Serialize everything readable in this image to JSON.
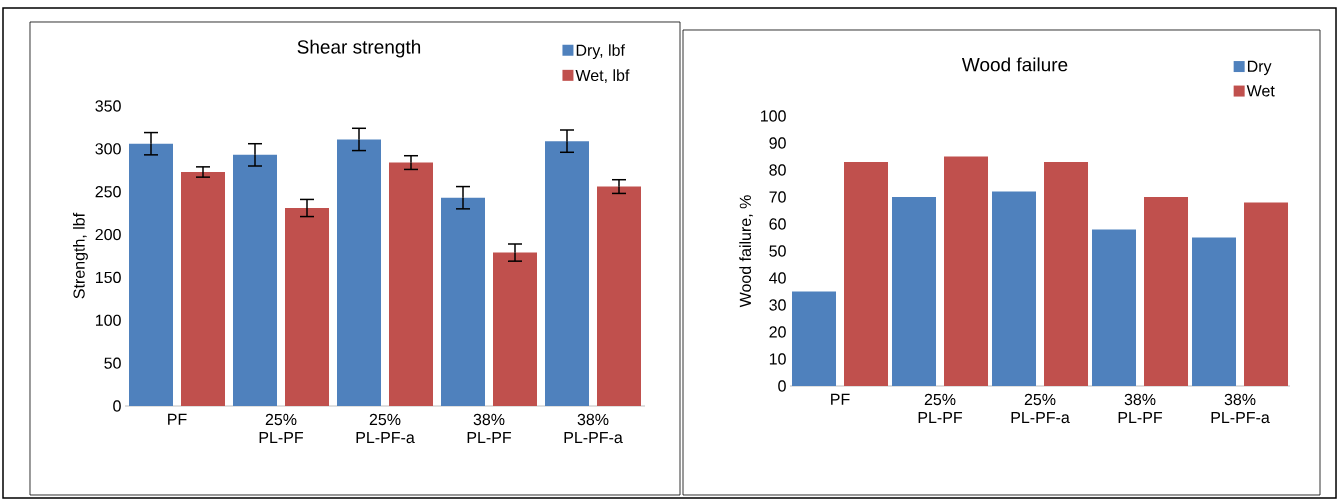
{
  "chart_data": [
    {
      "type": "bar",
      "title": "Shear strength",
      "ylabel": "Strength, lbf",
      "categories": [
        "PF",
        "25% PL-PF",
        "25% PL-PF-a",
        "38% PL-PF",
        "38% PL-PF-a"
      ],
      "series": [
        {
          "name": "Dry, lbf",
          "color": "#4f81bd",
          "values": [
            306,
            293,
            311,
            243,
            309
          ],
          "errors": [
            13,
            13,
            13,
            13,
            13
          ]
        },
        {
          "name": "Wet, lbf",
          "color": "#c0504d",
          "values": [
            273,
            231,
            284,
            179,
            256
          ],
          "errors": [
            6,
            10,
            8,
            10,
            8
          ]
        }
      ],
      "ylim": [
        0,
        350
      ],
      "yticks": [
        0,
        50,
        100,
        150,
        200,
        250,
        300,
        350
      ],
      "grid": false,
      "legend": "top right"
    },
    {
      "type": "bar",
      "title": "Wood failure",
      "ylabel": "Wood failure, %",
      "categories": [
        "PF",
        "25% PL-PF",
        "25% PL-PF-a",
        "38% PL-PF",
        "38% PL-PF-a"
      ],
      "series": [
        {
          "name": "Dry",
          "color": "#4f81bd",
          "values": [
            35,
            70,
            72,
            58,
            55
          ]
        },
        {
          "name": "Wet",
          "color": "#c0504d",
          "values": [
            83,
            85,
            83,
            70,
            68
          ]
        }
      ],
      "ylim": [
        0,
        100
      ],
      "yticks": [
        0,
        10,
        20,
        30,
        40,
        50,
        60,
        70,
        80,
        90,
        100
      ],
      "grid": false,
      "legend": "top right"
    }
  ]
}
